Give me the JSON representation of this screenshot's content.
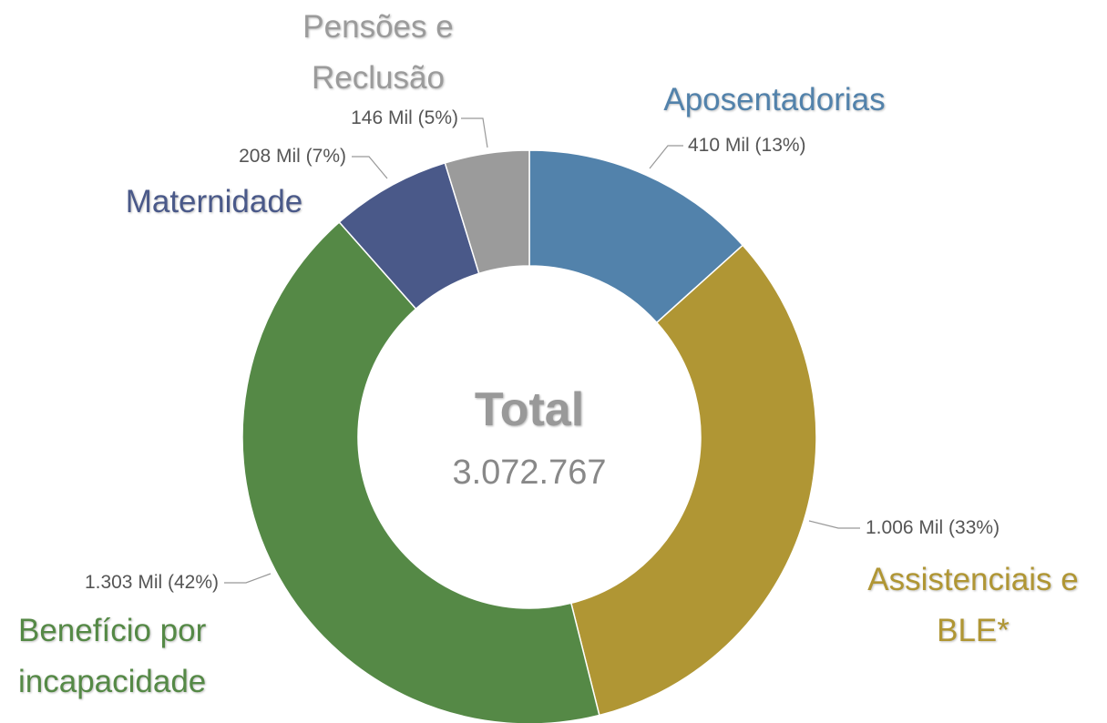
{
  "chart_data": {
    "type": "donut",
    "categories": [
      "Aposentadorias",
      "Assistenciais e BLE*",
      "Benefício por incapacidade",
      "Maternidade",
      "Pensões e Reclusão"
    ],
    "values": [
      410,
      1006,
      1303,
      208,
      146
    ],
    "value_labels": [
      "410 Mil (13%)",
      "1.006 Mil (33%)",
      "1.303 Mil (42%)",
      "208 Mil (7%)",
      "146 Mil (5%)"
    ],
    "colors": [
      "#5282ab",
      "#b09634",
      "#558946",
      "#4a5989",
      "#9b9b9b"
    ],
    "center_title": "Total",
    "total": {
      "value": 3072767,
      "label": "3.072.767"
    }
  }
}
